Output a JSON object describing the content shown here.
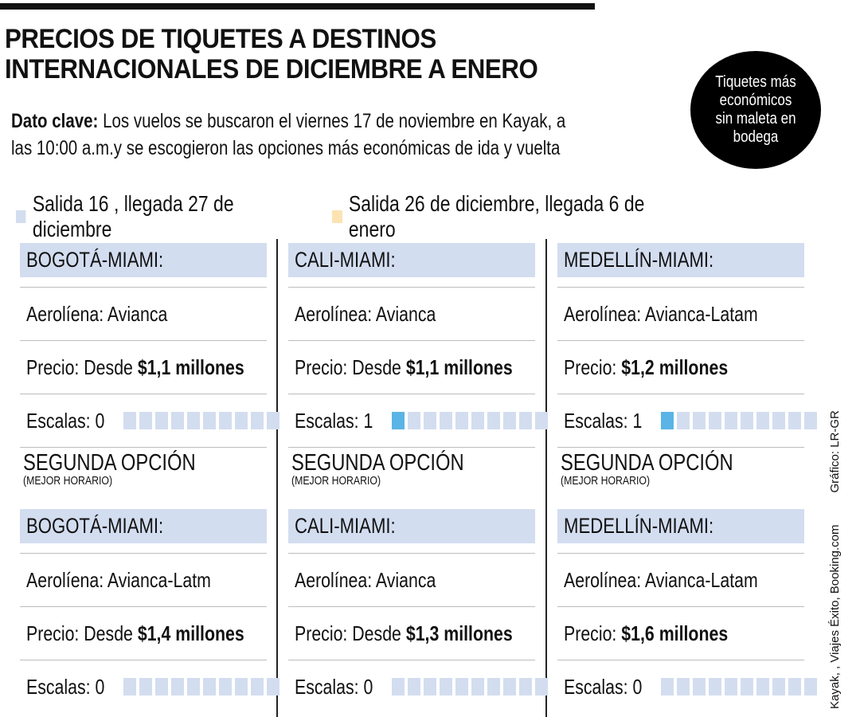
{
  "header": {
    "title_line1": "PRECIOS DE TIQUETES A DESTINOS",
    "title_line2": "INTERNACIONALES DE DICIEMBRE A ENERO",
    "badge": "Tiquetes más económicos sin maleta en bodega"
  },
  "key_fact": {
    "label": "Dato clave:",
    "text": " Los vuelos se buscaron el viernes 17 de noviembre en Kayak, a",
    "text2": "las 10:00 a.m.y se escogieron las opciones más económicas de ida y vuelta"
  },
  "legend": [
    {
      "label": "Salida 16 , llegada 27 de diciembre",
      "color": "#d3ddf0"
    },
    {
      "label": "Salida 26 de diciembre, llegada 6 de enero",
      "color": "#fbe3b3"
    }
  ],
  "colors": {
    "route_bg": "#d3ddf0",
    "pip_off": "#d3ddf0",
    "pip_on": "#5ab4e5"
  },
  "columns": [
    {
      "first": {
        "route": "BOGOTÁ-MIAMI:",
        "airline": "Aerolíena: Avianca",
        "price_prefix": "Precio: Desde ",
        "price": "$1,1 millones",
        "stops_label": "Escalas: 0",
        "stops": 0
      },
      "second_title": "SEGUNDA OPCIÓN",
      "second_sub": "(MEJOR HORARIO)",
      "second": {
        "route": "BOGOTÁ-MIAMI:",
        "airline": "Aerolíena: Avianca-Latm",
        "price_prefix": "Precio: Desde ",
        "price": "$1,4 millones",
        "stops_label": "Escalas: 0",
        "stops": 0
      }
    },
    {
      "first": {
        "route": "CALI-MIAMI:",
        "airline": "Aerolínea: Avianca",
        "price_prefix": "Precio: Desde ",
        "price": "$1,1 millones",
        "stops_label": "Escalas: 1",
        "stops": 1
      },
      "second_title": "SEGUNDA OPCIÓN",
      "second_sub": "(MEJOR HORARIO)",
      "second": {
        "route": "CALI-MIAMI:",
        "airline": "Aerolínea: Avianca",
        "price_prefix": "Precio: Desde ",
        "price": "$1,3 millones",
        "stops_label": "Escalas: 0",
        "stops": 0
      }
    },
    {
      "first": {
        "route": "MEDELLÍN-MIAMI:",
        "airline": "Aerolínea: Avianca-Latam",
        "price_prefix": "Precio: ",
        "price": "$1,2 millones",
        "stops_label": "Escalas: 1",
        "stops": 1
      },
      "second_title": "SEGUNDA OPCIÓN",
      "second_sub": "(MEJOR HORARIO)",
      "second": {
        "route": "MEDELLÍN-MIAMI:",
        "airline": "Aerolínea: Avianca-Latam",
        "price_prefix": "Precio: ",
        "price": "$1,6 millones",
        "stops_label": "Escalas: 0",
        "stops": 0
      }
    }
  ],
  "credits": {
    "sources": "Kayak, , Viajes Éxito, Booking.com",
    "graphic": "Gráfico: LR-GR"
  }
}
